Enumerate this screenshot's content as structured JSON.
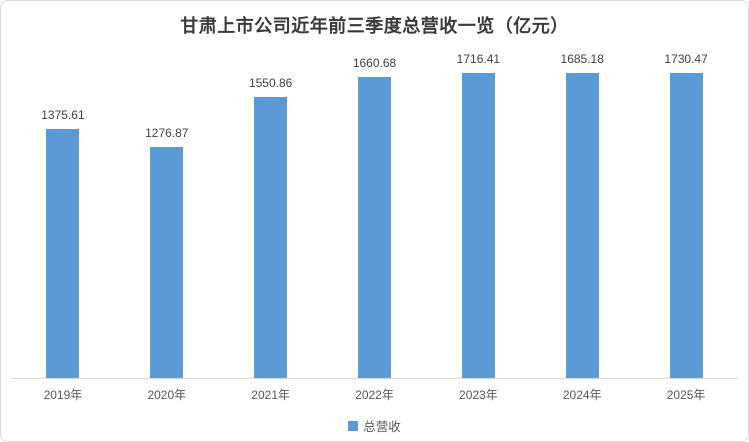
{
  "window": {
    "background": "#ffffff",
    "border_color": "#d9d9d9"
  },
  "chart_data": {
    "type": "bar",
    "title": "甘肃上市公司近年前三季度总营收一览（亿元）",
    "categories": [
      "2019年",
      "2020年",
      "2021年",
      "2022年",
      "2023年",
      "2024年",
      "2025年"
    ],
    "series": [
      {
        "name": "总营收",
        "values": [
          1375.61,
          1276.87,
          1550.86,
          1660.68,
          1716.41,
          1685.18,
          1730.47
        ],
        "color": "#5b9bd5"
      }
    ],
    "data_labels": [
      "1375.61",
      "1276.87",
      "1550.86",
      "1660.68",
      "1716.41",
      "1685.18",
      "1730.47"
    ],
    "xlabel": "",
    "ylabel": "",
    "ylim": [
      0,
      1800
    ],
    "grid": false,
    "y_axis_visible": false,
    "baseline_color": "#d9d9d9",
    "legend_position": "bottom"
  },
  "text_colors": {
    "title": "#3a3a3a",
    "data_label": "#404040",
    "axis_label": "#595959"
  }
}
